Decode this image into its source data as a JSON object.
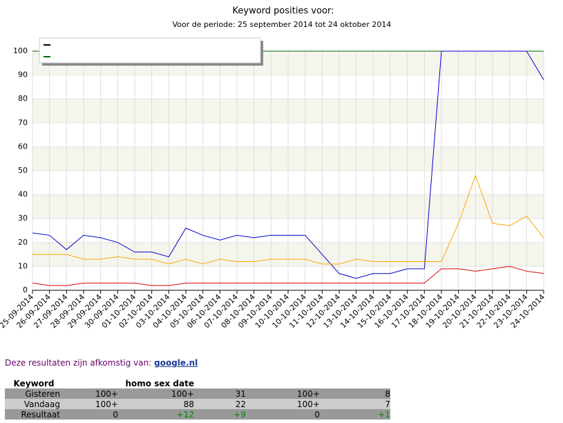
{
  "chart_data": {
    "type": "line",
    "title": "Keyword posities voor:",
    "subtitle": "Voor de periode: 25 september 2014 tot 24 oktober 2014",
    "categories": [
      "25-09-2014",
      "26-09-2014",
      "27-09-2014",
      "28-09-2014",
      "29-09-2014",
      "30-09-2014",
      "01-10-2014",
      "02-10-2014",
      "03-10-2014",
      "04-10-2014",
      "05-10-2014",
      "06-10-2014",
      "07-10-2014",
      "08-10-2014",
      "09-10-2014",
      "10-10-2014",
      "10-10-2014",
      "11-10-2014",
      "12-10-2014",
      "13-10-2014",
      "14-10-2014",
      "15-10-2014",
      "16-10-2014",
      "17-10-2014",
      "18-10-2014",
      "19-10-2014",
      "20-10-2014",
      "21-10-2014",
      "22-10-2014",
      "23-10-2014",
      "24-10-2014"
    ],
    "series": [
      {
        "color": "#000000",
        "values": [
          100,
          100,
          100,
          100,
          100,
          100,
          100,
          100,
          100,
          100,
          100,
          100,
          100,
          100,
          100,
          100,
          100,
          100,
          100,
          100,
          100,
          100,
          100,
          100,
          100,
          100,
          100,
          100,
          100,
          100,
          100
        ]
      },
      {
        "color": "#006600",
        "values": [
          100,
          100,
          100,
          100,
          100,
          100,
          100,
          100,
          100,
          100,
          100,
          100,
          100,
          100,
          100,
          100,
          100,
          100,
          100,
          100,
          100,
          100,
          100,
          100,
          100,
          100,
          100,
          100,
          100,
          100,
          100
        ]
      },
      {
        "color": "#0000cc",
        "values": [
          24,
          23,
          17,
          23,
          22,
          20,
          16,
          16,
          14,
          26,
          23,
          21,
          23,
          22,
          23,
          23,
          23,
          15,
          7,
          5,
          7,
          7,
          9,
          9,
          100,
          100,
          100,
          100,
          100,
          100,
          88
        ]
      },
      {
        "color": "#ffa500",
        "values": [
          15,
          15,
          15,
          13,
          13,
          14,
          13,
          13,
          11,
          13,
          11,
          13,
          12,
          12,
          13,
          13,
          13,
          11,
          11,
          13,
          12,
          12,
          12,
          12,
          12,
          28,
          48,
          28,
          27,
          31,
          22
        ]
      },
      {
        "color": "#dd0000",
        "values": [
          3,
          2,
          2,
          3,
          3,
          3,
          3,
          2,
          2,
          3,
          3,
          3,
          3,
          3,
          3,
          3,
          3,
          3,
          3,
          3,
          3,
          3,
          3,
          3,
          9,
          9,
          8,
          9,
          10,
          8,
          7
        ]
      }
    ],
    "ylim": [
      0,
      100
    ],
    "yticks": [
      0,
      10,
      20,
      30,
      40,
      50,
      60,
      70,
      80,
      90,
      100
    ],
    "grid": true
  },
  "source": {
    "text": "Deze resultaten zijn afkomstig van:",
    "link": "google.nl"
  },
  "table": {
    "header_keyword": "Keyword",
    "header_col2": "homo sex date",
    "rows": [
      {
        "label": "Gisteren",
        "values": [
          "100+",
          "100+",
          31,
          "100+",
          8
        ]
      },
      {
        "label": "Vandaag",
        "values": [
          "100+",
          88,
          22,
          "100+",
          7
        ]
      },
      {
        "label": "Resultaat",
        "values": [
          0,
          "+12",
          "+9",
          0,
          "+1"
        ]
      }
    ]
  }
}
